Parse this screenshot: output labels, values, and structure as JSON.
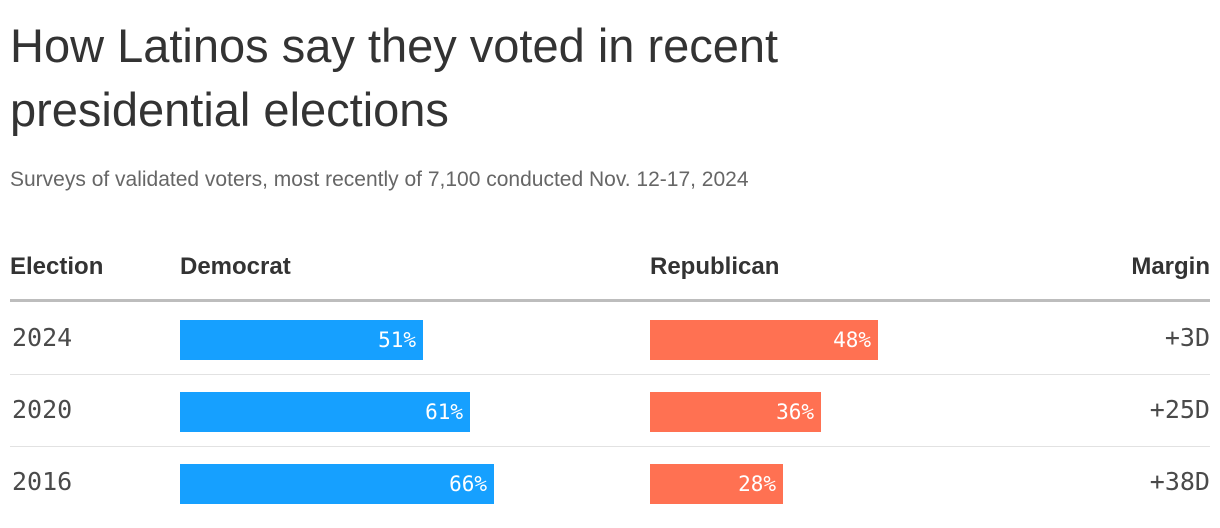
{
  "title": "How Latinos say they voted in recent presidential elections",
  "subtitle": "Surveys of validated voters, most recently of 7,100 conducted Nov. 12-17, 2024",
  "columns": {
    "election": "Election",
    "democrat": "Democrat",
    "republican": "Republican",
    "margin": "Margin"
  },
  "colors": {
    "democrat": "#16a0ff",
    "republican": "#ff7152"
  },
  "chart_data": {
    "type": "bar",
    "categories": [
      "2024",
      "2020",
      "2016"
    ],
    "series": [
      {
        "name": "Democrat",
        "values": [
          51,
          61,
          66
        ],
        "labels": [
          "51%",
          "61%",
          "66%"
        ]
      },
      {
        "name": "Republican",
        "values": [
          48,
          36,
          28
        ],
        "labels": [
          "48%",
          "36%",
          "28%"
        ]
      }
    ],
    "margins": [
      "+3D",
      "+25D",
      "+38D"
    ],
    "title": "How Latinos say they voted in recent presidential elections",
    "xlabel": "",
    "ylabel": "",
    "ylim": [
      0,
      100
    ]
  }
}
